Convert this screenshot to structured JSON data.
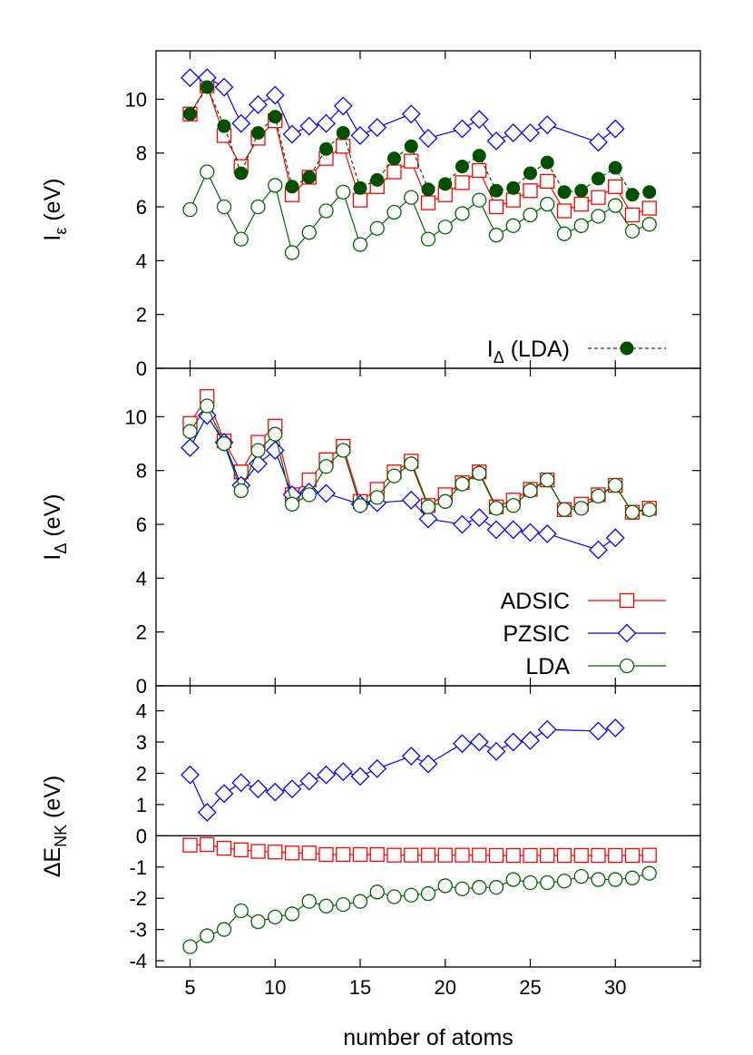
{
  "chart_data": [
    {
      "type": "line",
      "panel": "top",
      "ylabel": {
        "main": "I",
        "sub": "ε",
        "unit": " (eV)"
      },
      "ylim": [
        0,
        11.8
      ],
      "yticks": [
        "0",
        "2",
        "4",
        "6",
        "8",
        "10"
      ],
      "xlim": [
        3,
        35
      ],
      "colors": {
        "ADSIC": "#ff0000",
        "PZSIC": "#0000ff",
        "LDA": "#006400",
        "I_Delta_LDA": "#005000"
      },
      "legend": {
        "position": "bottom-right",
        "entries": [
          {
            "main": "I",
            "sub": "Δ",
            "rest": " (LDA)"
          }
        ]
      },
      "series": [
        {
          "name": "ADSIC",
          "marker": "square",
          "x": [
            5,
            6,
            7,
            8,
            9,
            10,
            11,
            12,
            13,
            14,
            15,
            16,
            17,
            18,
            19,
            20,
            21,
            22,
            23,
            24,
            25,
            26,
            27,
            28,
            29,
            30,
            31,
            32
          ],
          "y": [
            9.45,
            10.5,
            8.65,
            7.5,
            8.55,
            9.2,
            6.45,
            7.1,
            7.8,
            8.25,
            6.25,
            6.75,
            7.3,
            7.7,
            6.15,
            6.45,
            6.9,
            7.35,
            6.0,
            6.25,
            6.6,
            6.95,
            5.85,
            6.1,
            6.35,
            6.75,
            5.7,
            5.95
          ]
        },
        {
          "name": "PZSIC",
          "marker": "diamond",
          "x": [
            5,
            6,
            7,
            8,
            9,
            10,
            11,
            12,
            13,
            14,
            15,
            16,
            18,
            19,
            21,
            22,
            23,
            24,
            25,
            26,
            29,
            30
          ],
          "y": [
            10.8,
            10.8,
            10.45,
            9.1,
            9.8,
            10.15,
            8.7,
            9.0,
            9.1,
            9.75,
            8.65,
            8.95,
            9.45,
            8.55,
            8.9,
            9.25,
            8.45,
            8.75,
            8.75,
            9.05,
            8.4,
            8.9
          ]
        },
        {
          "name": "LDA",
          "marker": "circle",
          "x": [
            5,
            6,
            7,
            8,
            9,
            10,
            11,
            12,
            13,
            14,
            15,
            16,
            17,
            18,
            19,
            20,
            21,
            22,
            23,
            24,
            25,
            26,
            27,
            28,
            29,
            30,
            31,
            32
          ],
          "y": [
            5.9,
            7.3,
            6.0,
            4.8,
            6.0,
            6.8,
            4.3,
            5.05,
            5.85,
            6.55,
            4.6,
            5.2,
            5.8,
            6.35,
            4.8,
            5.25,
            5.75,
            6.25,
            4.95,
            5.3,
            5.7,
            6.1,
            5.0,
            5.3,
            5.65,
            6.05,
            5.1,
            5.35
          ]
        },
        {
          "name": "I_Delta_LDA",
          "marker": "filled-circle",
          "dashed": true,
          "x": [
            5,
            6,
            7,
            8,
            9,
            10,
            11,
            12,
            13,
            14,
            15,
            16,
            17,
            18,
            19,
            20,
            21,
            22,
            23,
            24,
            25,
            26,
            27,
            28,
            29,
            30,
            31,
            32
          ],
          "y": [
            9.45,
            10.45,
            9.0,
            7.25,
            8.75,
            9.35,
            6.75,
            7.1,
            8.15,
            8.75,
            6.7,
            7.0,
            7.8,
            8.25,
            6.65,
            6.85,
            7.5,
            7.9,
            6.6,
            6.7,
            7.25,
            7.65,
            6.55,
            6.6,
            7.05,
            7.45,
            6.45,
            6.55
          ]
        }
      ]
    },
    {
      "type": "line",
      "panel": "middle",
      "ylabel": {
        "main": "I",
        "sub": "Δ",
        "unit": " (eV)"
      },
      "ylim": [
        0,
        11.8
      ],
      "yticks": [
        "0",
        "2",
        "4",
        "6",
        "8",
        "10"
      ],
      "xlim": [
        3,
        35
      ],
      "legend": {
        "position": "bottom-right",
        "entries": [
          {
            "main": "ADSIC"
          },
          {
            "main": "PZSIC"
          },
          {
            "main": "LDA"
          }
        ]
      },
      "series": [
        {
          "name": "ADSIC",
          "marker": "square",
          "x": [
            5,
            6,
            7,
            8,
            9,
            10,
            11,
            12,
            13,
            14,
            15,
            16,
            17,
            18,
            19,
            20,
            21,
            22,
            23,
            24,
            25,
            26,
            27,
            28,
            29,
            30,
            31,
            32
          ],
          "y": [
            9.75,
            10.75,
            9.1,
            7.95,
            9.05,
            9.65,
            7.1,
            7.65,
            8.4,
            8.9,
            6.85,
            7.3,
            7.95,
            8.35,
            6.7,
            7.1,
            7.55,
            7.95,
            6.65,
            6.9,
            7.3,
            7.65,
            6.55,
            6.75,
            7.1,
            7.45,
            6.45,
            6.6
          ]
        },
        {
          "name": "PZSIC",
          "marker": "diamond",
          "x": [
            5,
            6,
            7,
            8,
            9,
            10,
            11,
            12,
            13,
            15,
            16,
            18,
            19,
            21,
            22,
            23,
            24,
            25,
            26,
            29,
            30
          ],
          "y": [
            8.85,
            10.05,
            9.05,
            7.45,
            8.25,
            8.75,
            7.1,
            7.2,
            7.15,
            6.75,
            6.8,
            6.9,
            6.2,
            6.0,
            6.25,
            5.8,
            5.8,
            5.7,
            5.65,
            5.05,
            5.5
          ]
        },
        {
          "name": "LDA",
          "marker": "circle",
          "x": [
            5,
            6,
            7,
            8,
            9,
            10,
            11,
            12,
            13,
            14,
            15,
            16,
            17,
            18,
            19,
            20,
            21,
            22,
            23,
            24,
            25,
            26,
            27,
            28,
            29,
            30,
            31,
            32
          ],
          "y": [
            9.45,
            10.4,
            9.0,
            7.25,
            8.75,
            9.35,
            6.75,
            7.1,
            8.15,
            8.75,
            6.7,
            7.0,
            7.8,
            8.25,
            6.65,
            6.85,
            7.5,
            7.9,
            6.6,
            6.7,
            7.25,
            7.65,
            6.55,
            6.6,
            7.05,
            7.45,
            6.45,
            6.55
          ]
        }
      ]
    },
    {
      "type": "line",
      "panel": "bottom",
      "ylabel": {
        "main": "ΔE",
        "sub": "NK",
        "unit": " (eV)"
      },
      "xlabel": "number of atoms",
      "ylim": [
        -4.2,
        4.8
      ],
      "yticks": [
        "-4",
        "-3",
        "-2",
        "-1",
        "0",
        "1",
        "2",
        "3",
        "4"
      ],
      "xlim": [
        3,
        35
      ],
      "xticks": [
        "5",
        "10",
        "15",
        "20",
        "25",
        "30"
      ],
      "zero_line": true,
      "series": [
        {
          "name": "ADSIC",
          "marker": "square",
          "x": [
            5,
            6,
            7,
            8,
            9,
            10,
            11,
            12,
            13,
            14,
            15,
            16,
            17,
            18,
            19,
            20,
            21,
            22,
            23,
            24,
            25,
            26,
            27,
            28,
            29,
            30,
            31,
            32
          ],
          "y": [
            -0.3,
            -0.28,
            -0.4,
            -0.45,
            -0.5,
            -0.52,
            -0.55,
            -0.55,
            -0.6,
            -0.6,
            -0.6,
            -0.6,
            -0.62,
            -0.62,
            -0.62,
            -0.62,
            -0.62,
            -0.62,
            -0.63,
            -0.63,
            -0.63,
            -0.63,
            -0.63,
            -0.63,
            -0.63,
            -0.63,
            -0.63,
            -0.62
          ]
        },
        {
          "name": "PZSIC",
          "marker": "diamond",
          "x": [
            5,
            6,
            7,
            8,
            9,
            10,
            11,
            12,
            13,
            14,
            15,
            16,
            18,
            19,
            21,
            22,
            23,
            24,
            25,
            26,
            29,
            30
          ],
          "y": [
            1.95,
            0.75,
            1.35,
            1.7,
            1.5,
            1.4,
            1.5,
            1.75,
            1.95,
            2.05,
            1.9,
            2.15,
            2.55,
            2.3,
            2.95,
            3.0,
            2.7,
            3.0,
            3.05,
            3.4,
            3.35,
            3.45
          ]
        },
        {
          "name": "LDA",
          "marker": "circle",
          "x": [
            5,
            6,
            7,
            8,
            9,
            10,
            11,
            12,
            13,
            14,
            15,
            16,
            17,
            18,
            19,
            20,
            21,
            22,
            23,
            24,
            25,
            26,
            27,
            28,
            29,
            30,
            31,
            32
          ],
          "y": [
            -3.55,
            -3.2,
            -3.0,
            -2.4,
            -2.75,
            -2.6,
            -2.5,
            -2.1,
            -2.25,
            -2.2,
            -2.1,
            -1.8,
            -1.95,
            -1.9,
            -1.85,
            -1.6,
            -1.7,
            -1.65,
            -1.65,
            -1.4,
            -1.5,
            -1.5,
            -1.45,
            -1.3,
            -1.4,
            -1.4,
            -1.35,
            -1.2
          ]
        }
      ]
    }
  ]
}
